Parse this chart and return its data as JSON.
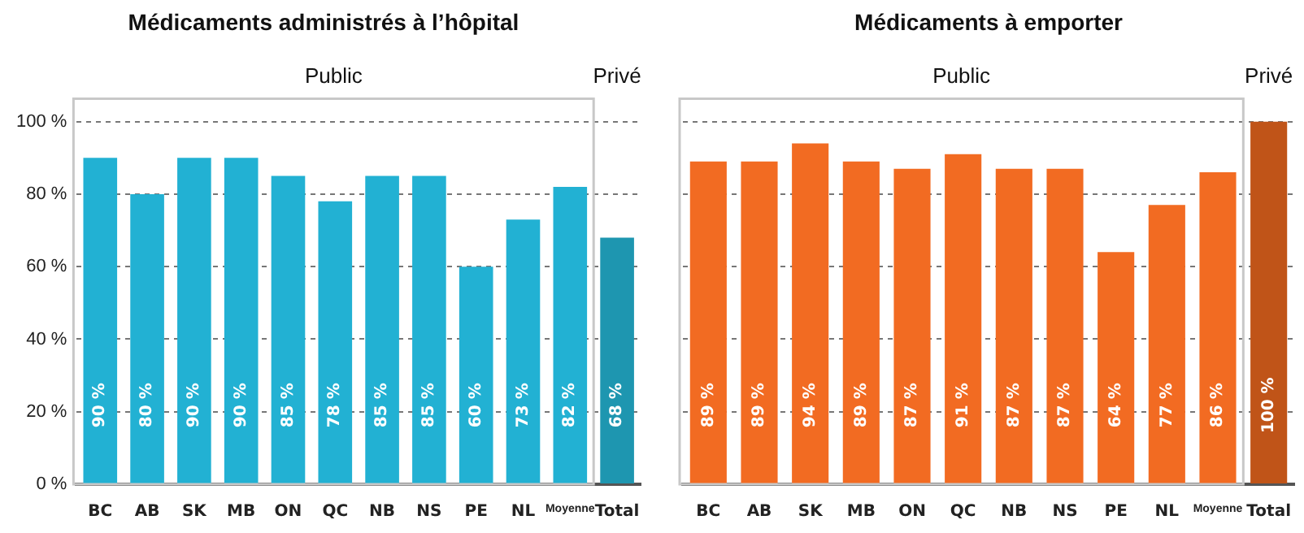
{
  "chart_data": [
    {
      "type": "bar",
      "title": "Médicaments administrés à l’hôpital",
      "categories": [
        "BC",
        "AB",
        "SK",
        "MB",
        "ON",
        "QC",
        "NB",
        "NS",
        "PE",
        "NL",
        "Moyenne",
        "Total"
      ],
      "values": [
        90,
        80,
        90,
        90,
        85,
        78,
        85,
        85,
        60,
        73,
        82,
        68
      ],
      "colors": [
        "#22b1d3",
        "#22b1d3",
        "#22b1d3",
        "#22b1d3",
        "#22b1d3",
        "#22b1d3",
        "#22b1d3",
        "#22b1d3",
        "#22b1d3",
        "#22b1d3",
        "#22b1d3",
        "#1e96b0"
      ],
      "value_labels": [
        "90 %",
        "80 %",
        "90 %",
        "90 %",
        "85 %",
        "78 %",
        "85 %",
        "85 %",
        "60 %",
        "73 %",
        "82 %",
        "68 %"
      ],
      "ylim": [
        0,
        100
      ],
      "yticks": [
        {
          "value": 0,
          "label": "0 %"
        },
        {
          "value": 20,
          "label": "20 %"
        },
        {
          "value": 40,
          "label": "40 %"
        },
        {
          "value": 60,
          "label": "60 %"
        },
        {
          "value": 80,
          "label": "80 %"
        },
        {
          "value": 100,
          "label": "100 %"
        }
      ],
      "grid": "y",
      "annotations": [
        "Public",
        "Privé"
      ]
    },
    {
      "type": "bar",
      "title": "Médicaments à emporter",
      "categories": [
        "BC",
        "AB",
        "SK",
        "MB",
        "ON",
        "QC",
        "NB",
        "NS",
        "PE",
        "NL",
        "Moyenne",
        "Total"
      ],
      "values": [
        89,
        89,
        94,
        89,
        87,
        91,
        87,
        87,
        64,
        77,
        86,
        100
      ],
      "yticks": [
        0,
        20,
        40,
        60,
        80,
        100
      ],
      "colors": [
        "#f26b22",
        "#f26b22",
        "#f26b22",
        "#f26b22",
        "#f26b22",
        "#f26b22",
        "#f26b22",
        "#f26b22",
        "#f26b22",
        "#f26b22",
        "#f26b22",
        "#c05418"
      ],
      "value_labels": [
        "89 %",
        "89 %",
        "94 %",
        "89 %",
        "87 %",
        "91 %",
        "87 %",
        "87 %",
        "64 %",
        "77 %",
        "86 %",
        "100 %"
      ],
      "ylim": [
        0,
        100
      ],
      "grid": "y",
      "tick_labels": "x",
      "annotations": [
        "Public",
        "Privé"
      ]
    }
  ]
}
